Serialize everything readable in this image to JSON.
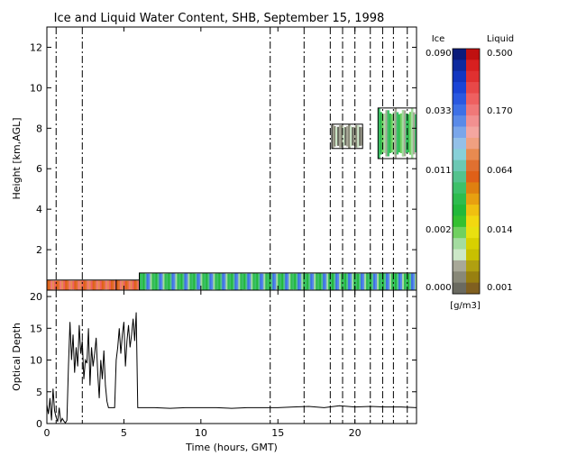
{
  "chart_data": [
    {
      "type": "heatmap",
      "title": "Ice and Liquid Water Content, SHB, September 15, 1998",
      "xlabel": "",
      "ylabel": "Height [km,AGL]",
      "xlim": [
        0,
        24
      ],
      "ylim": [
        0,
        13
      ],
      "xticks": [
        0,
        5,
        10,
        15,
        20
      ],
      "yticks": [
        2,
        4,
        6,
        8,
        10,
        12
      ],
      "dashed_times": [
        0.6,
        2.3,
        14.5,
        16.7,
        18.4,
        19.2,
        20.0,
        21.0,
        21.8,
        22.5,
        23.4
      ],
      "regions": [
        {
          "kind": "liquid",
          "x_start": 0.0,
          "x_end": 4.5,
          "y_bottom": 0.0,
          "y_top": 0.5,
          "level": "0.064-0.170"
        },
        {
          "kind": "liquid",
          "x_start": 4.5,
          "x_end": 6.0,
          "y_bottom": 0.0,
          "y_top": 0.5,
          "level": "0.064-0.170"
        },
        {
          "kind": "liquid",
          "x_start": 6.0,
          "x_end": 24.0,
          "y_bottom": 0.0,
          "y_top": 0.85,
          "level": "0.002-0.011"
        },
        {
          "kind": "ice",
          "x_start": 18.5,
          "x_end": 20.5,
          "y_bottom": 7.0,
          "y_top": 8.2,
          "level": "0.000-0.002"
        },
        {
          "kind": "ice",
          "x_start": 21.5,
          "x_end": 24.0,
          "y_bottom": 6.5,
          "y_top": 9.0,
          "level": "0.002-0.033"
        }
      ],
      "colorbar": {
        "ice_header": "Ice",
        "liquid_header": "Liquid",
        "units": "[g/m3]",
        "ice_labels": [
          "0.090",
          "0.033",
          "0.011",
          "0.002",
          "0.000"
        ],
        "liquid_labels": [
          "0.500",
          "0.170",
          "0.064",
          "0.014",
          "0.001"
        ],
        "ice_colors": [
          "#0b1b7a",
          "#0e2a9e",
          "#1236c0",
          "#1a44d6",
          "#2a58e0",
          "#3e70e6",
          "#5a8ae8",
          "#7aa6ea",
          "#93c0e8",
          "#88d0d8",
          "#6cc8b4",
          "#54c28e",
          "#3ec06a",
          "#2ebc4e",
          "#22b83a",
          "#34c030",
          "#70d060",
          "#a4dca0",
          "#cce8c8",
          "#a8a898",
          "#888878",
          "#6a6a60"
        ],
        "liquid_colors": [
          "#c01010",
          "#d82020",
          "#e03030",
          "#e84848",
          "#ee6060",
          "#f07878",
          "#f29090",
          "#f4a6a0",
          "#f0a080",
          "#e88a50",
          "#e07030",
          "#e06018",
          "#e08010",
          "#e8a010",
          "#f0c010",
          "#f2d810",
          "#e8e010",
          "#d8d000",
          "#c8c000",
          "#b0a010",
          "#988010",
          "#806020"
        ]
      }
    },
    {
      "type": "line",
      "title": "",
      "xlabel": "Time (hours, GMT)",
      "ylabel": "Optical Depth",
      "xlim": [
        0,
        24
      ],
      "ylim": [
        0,
        21
      ],
      "xticks": [
        0,
        5,
        10,
        15,
        20
      ],
      "yticks": [
        0,
        5,
        10,
        15,
        20
      ],
      "series": [
        {
          "x": [
            0.0,
            0.1,
            0.2,
            0.3,
            0.4,
            0.5,
            0.6,
            0.7,
            0.8,
            0.9,
            1.0,
            1.1,
            1.2,
            1.3,
            1.4,
            1.5,
            1.6,
            1.7,
            1.8,
            1.9,
            2.0,
            2.1,
            2.2,
            2.3,
            2.4,
            2.5,
            2.6,
            2.7,
            2.8,
            2.9,
            3.0,
            3.1,
            3.2,
            3.3,
            3.4,
            3.5,
            3.6,
            3.7,
            3.8,
            3.9,
            4.0,
            4.1,
            4.2,
            4.3,
            4.4,
            4.5,
            4.6,
            4.7,
            4.8,
            4.9,
            5.0,
            5.1,
            5.2,
            5.3,
            5.4,
            5.5,
            5.6,
            5.7,
            5.8,
            5.9,
            6.0,
            7.0,
            8.0,
            9.0,
            10.0,
            11.0,
            12.0,
            13.0,
            14.0,
            15.0,
            16.0,
            17.0,
            18.0,
            19.0,
            20.0,
            21.0,
            22.0,
            23.0,
            24.0
          ],
          "y": [
            3.0,
            1.5,
            4.0,
            0.5,
            5.5,
            2.0,
            1.0,
            0.3,
            2.5,
            0.2,
            0.8,
            0.4,
            0.1,
            0.5,
            9.0,
            16.0,
            10.0,
            14.0,
            8.0,
            12.0,
            9.0,
            15.5,
            11.0,
            13.0,
            7.0,
            10.0,
            9.5,
            15.0,
            6.0,
            12.0,
            9.0,
            11.0,
            13.5,
            8.0,
            4.0,
            10.0,
            7.0,
            11.5,
            6.0,
            3.5,
            2.5,
            2.5,
            2.5,
            2.5,
            2.5,
            10.0,
            12.0,
            15.0,
            11.0,
            14.0,
            16.0,
            9.0,
            13.0,
            15.5,
            12.0,
            14.0,
            16.5,
            13.0,
            17.5,
            2.5,
            2.5,
            2.5,
            2.4,
            2.5,
            2.5,
            2.5,
            2.4,
            2.5,
            2.5,
            2.5,
            2.6,
            2.7,
            2.5,
            2.8,
            2.6,
            2.7,
            2.6,
            2.6,
            2.5
          ]
        }
      ]
    }
  ]
}
